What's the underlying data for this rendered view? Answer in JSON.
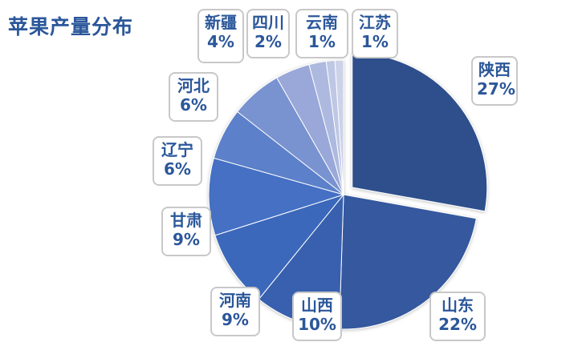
{
  "chart_data": {
    "type": "pie",
    "title": "苹果产量分布",
    "categories": [
      "陕西",
      "山东",
      "山西",
      "河南",
      "甘肃",
      "辽宁",
      "河北",
      "新疆",
      "四川",
      "云南",
      "江苏"
    ],
    "values": [
      27,
      22,
      10,
      9,
      9,
      6,
      6,
      4,
      2,
      1,
      1
    ],
    "value_labels": [
      "27%",
      "22%",
      "10%",
      "9%",
      "9%",
      "6%",
      "6%",
      "4%",
      "2%",
      "1%",
      "1%"
    ],
    "exploded": [
      "陕西"
    ],
    "colors": [
      "#2e4f8c",
      "#34599e",
      "#3761ae",
      "#3a67ba",
      "#4470c4",
      "#5c80c9",
      "#7992d0",
      "#99a8d8",
      "#adb9df",
      "#bec7e4",
      "#ccd3e9"
    ]
  }
}
